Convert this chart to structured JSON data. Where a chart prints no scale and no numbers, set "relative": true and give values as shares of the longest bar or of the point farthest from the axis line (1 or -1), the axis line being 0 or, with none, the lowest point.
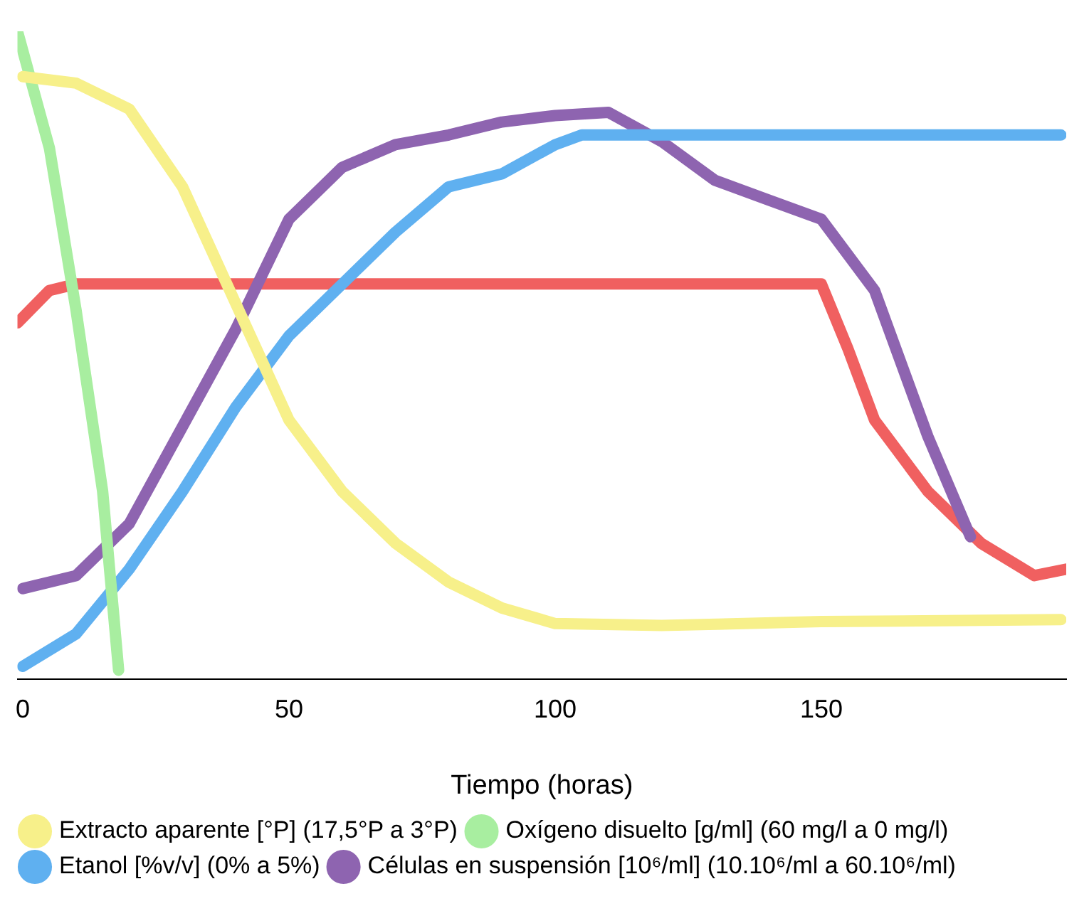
{
  "chart_data": {
    "type": "line",
    "relative": true,
    "xlabel": "Tiempo (horas)",
    "xlim": [
      -1,
      196
    ],
    "xticks": [
      0,
      50,
      100,
      150
    ],
    "grid": false,
    "legend": "bottom",
    "marker": "none",
    "series": [
      {
        "name": "Extracto aparente [°P] (17,5°P a 3°P)",
        "color": "#f7f08a",
        "x": [
          0,
          10,
          20,
          30,
          40,
          50,
          60,
          70,
          80,
          90,
          100,
          120,
          150,
          195
        ],
        "values": [
          0.93,
          0.92,
          0.88,
          0.76,
          0.58,
          0.4,
          0.29,
          0.21,
          0.15,
          0.11,
          0.086,
          0.083,
          0.089,
          0.092
        ]
      },
      {
        "name": "Oxígeno disuelto [g/ml] (60 mg/l a 0 mg/l)",
        "color": "#a8eea0",
        "x": [
          -1,
          5,
          10,
          15,
          18
        ],
        "values": [
          1,
          0.82,
          0.57,
          0.29,
          0.014
        ]
      },
      {
        "name": "Etanol [%v/v] (0% a 5%)",
        "color": "#5fb0f0",
        "x": [
          0,
          10,
          20,
          30,
          40,
          50,
          60,
          70,
          80,
          90,
          100,
          105,
          120,
          195
        ],
        "values": [
          0.02,
          0.07,
          0.17,
          0.29,
          0.42,
          0.53,
          0.61,
          0.69,
          0.76,
          0.78,
          0.825,
          0.84,
          0.84,
          0.84
        ]
      },
      {
        "name": "Células en suspensión [10⁶/ml] (10.10⁶/ml a 60.10⁶/ml)",
        "color": "#8e64b0",
        "x": [
          0,
          10,
          20,
          30,
          40,
          50,
          60,
          70,
          80,
          90,
          100,
          110,
          120,
          130,
          140,
          150,
          160,
          170,
          178
        ],
        "values": [
          0.14,
          0.16,
          0.24,
          0.39,
          0.54,
          0.71,
          0.79,
          0.825,
          0.84,
          0.86,
          0.87,
          0.875,
          0.83,
          0.77,
          0.74,
          0.71,
          0.6,
          0.375,
          0.22
        ]
      },
      {
        "color": "#f06060",
        "x": [
          -1,
          5,
          10,
          50,
          100,
          150,
          155,
          160,
          170,
          180,
          190,
          196
        ],
        "values": [
          0.55,
          0.6,
          0.61,
          0.61,
          0.61,
          0.61,
          0.51,
          0.4,
          0.29,
          0.21,
          0.16,
          0.17
        ]
      }
    ]
  }
}
